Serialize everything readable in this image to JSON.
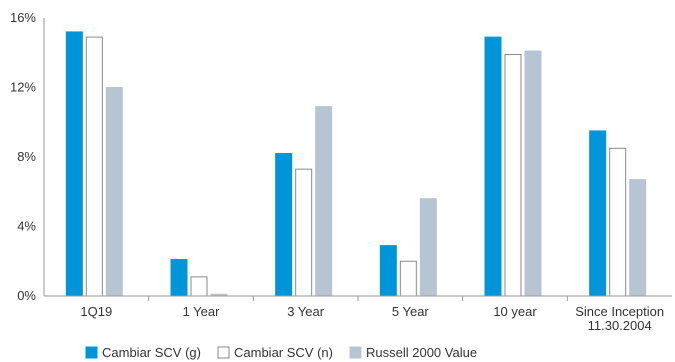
{
  "chart_data": {
    "type": "bar",
    "categories": [
      [
        "1Q19"
      ],
      [
        "1 Year"
      ],
      [
        "3 Year"
      ],
      [
        "5 Year"
      ],
      [
        "10 year"
      ],
      [
        "Since Inception",
        "11.30.2004"
      ]
    ],
    "series": [
      {
        "name": "Cambiar SCV (g)",
        "values": [
          15.2,
          2.1,
          8.2,
          2.9,
          14.9,
          9.5
        ],
        "color": "#0095d9",
        "stroke": "#0095d9"
      },
      {
        "name": "Cambiar SCV (n)",
        "values": [
          14.9,
          1.1,
          7.3,
          2.0,
          13.9,
          8.5
        ],
        "color": "#ffffff",
        "stroke": "#8a8a8a"
      },
      {
        "name": "Russell 2000 Value",
        "values": [
          12.0,
          0.1,
          10.9,
          5.6,
          14.1,
          6.7
        ],
        "color": "#b7c5d3",
        "stroke": "#b7c5d3"
      }
    ],
    "ylim": [
      0,
      16
    ],
    "yticks": [
      0,
      4,
      8,
      12,
      16
    ],
    "ytick_labels": [
      "0%",
      "4%",
      "8%",
      "12%",
      "16%"
    ],
    "title": "",
    "xlabel": "",
    "ylabel": "",
    "grid": false,
    "legend_position": "bottom-left"
  }
}
